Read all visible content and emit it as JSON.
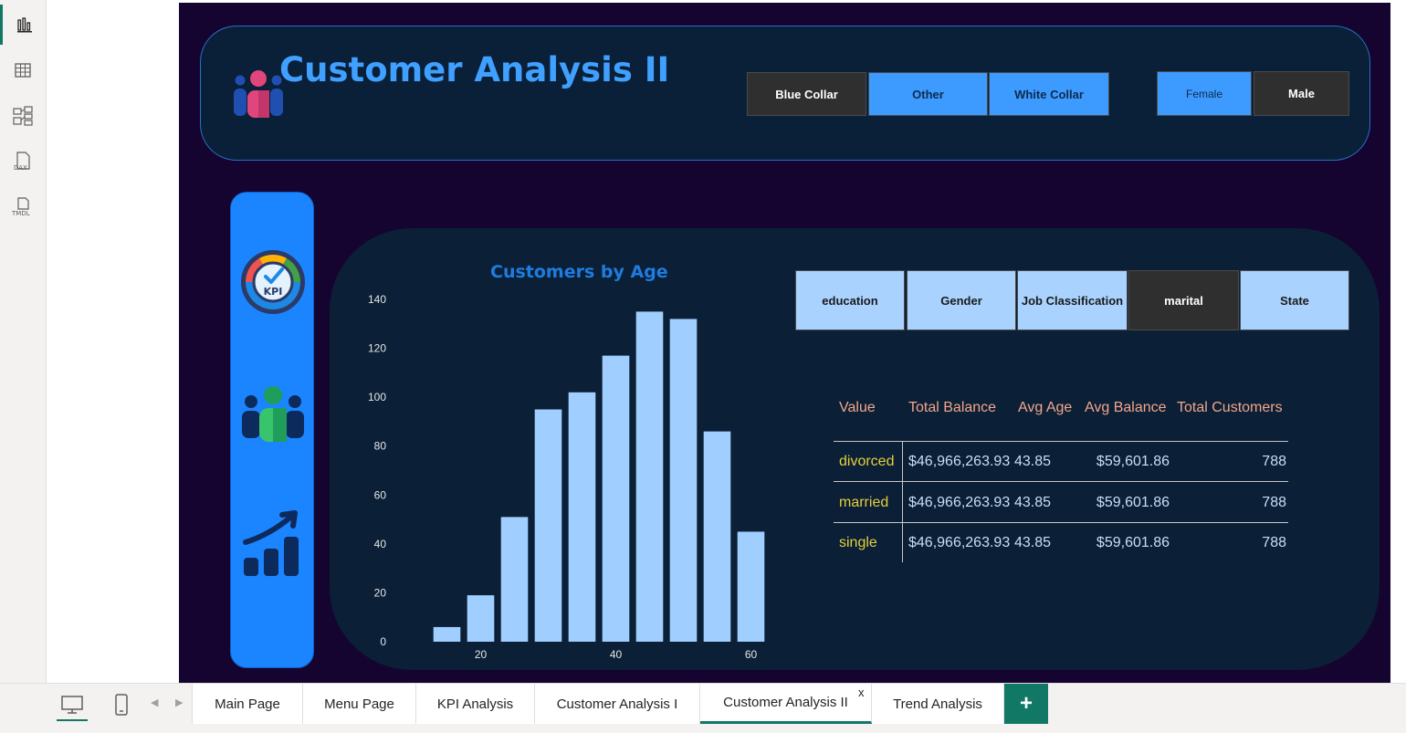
{
  "header": {
    "title": "Customer Analysis II",
    "job_buttons": [
      {
        "label": "Blue Collar",
        "selected": false
      },
      {
        "label": "Other",
        "selected": true
      },
      {
        "label": "White Collar",
        "selected": true
      }
    ],
    "gender_buttons": [
      {
        "label": "Female",
        "selected": true
      },
      {
        "label": "Male",
        "selected": false
      }
    ]
  },
  "side_nav": {
    "icons": [
      "kpi-gauge-icon",
      "customers-group-icon",
      "trend-chart-icon"
    ],
    "kpi_icon_text": "KPI"
  },
  "field_buttons": [
    {
      "label": "education",
      "selected": false
    },
    {
      "label": "Gender",
      "selected": false
    },
    {
      "label": "Job Classification",
      "selected": false
    },
    {
      "label": "marital",
      "selected": true
    },
    {
      "label": "State",
      "selected": false
    }
  ],
  "chart_data": {
    "type": "bar",
    "title": "Customers by Age",
    "x": [
      15,
      20,
      25,
      30,
      35,
      40,
      45,
      50,
      55,
      60
    ],
    "values": [
      6,
      19,
      51,
      95,
      102,
      117,
      135,
      132,
      86,
      45
    ],
    "ylim": [
      0,
      140
    ],
    "yticks": [
      0,
      20,
      40,
      60,
      80,
      100,
      120,
      140
    ],
    "xticks": [
      20,
      40,
      60
    ],
    "bar_color": "#a0cfff",
    "xlabel": "",
    "ylabel": ""
  },
  "table": {
    "columns": [
      "Value",
      "Total Balance",
      "Avg Age",
      "Avg Balance",
      "Total Customers"
    ],
    "rows": [
      [
        "divorced",
        "$46,966,263.93",
        "43.85",
        "$59,601.86",
        "788"
      ],
      [
        "married",
        "$46,966,263.93",
        "43.85",
        "$59,601.86",
        "788"
      ],
      [
        "single",
        "$46,966,263.93",
        "43.85",
        "$59,601.86",
        "788"
      ]
    ]
  },
  "left_rail": {
    "items": [
      "report-view-icon",
      "table-view-icon",
      "model-view-icon",
      "dax-query-icon",
      "tmdl-view-icon"
    ],
    "dax_label": "DAX",
    "tmdl_label": "TMDL"
  },
  "tabs": {
    "items": [
      "Main Page",
      "Menu Page",
      "KPI Analysis",
      "Customer Analysis I",
      "Customer Analysis II",
      "Trend Analysis"
    ],
    "active_index": 4,
    "close_label": "x",
    "add_label": "+"
  },
  "colors": {
    "canvas_bg": "#150430",
    "panel_bg": "#0b1f36",
    "accent_blue": "#3d9bff",
    "title_blue": "#3fa0ff",
    "header_text": "#f3a68a",
    "value_text": "#e6cf3d",
    "active_tab": "#117865"
  }
}
